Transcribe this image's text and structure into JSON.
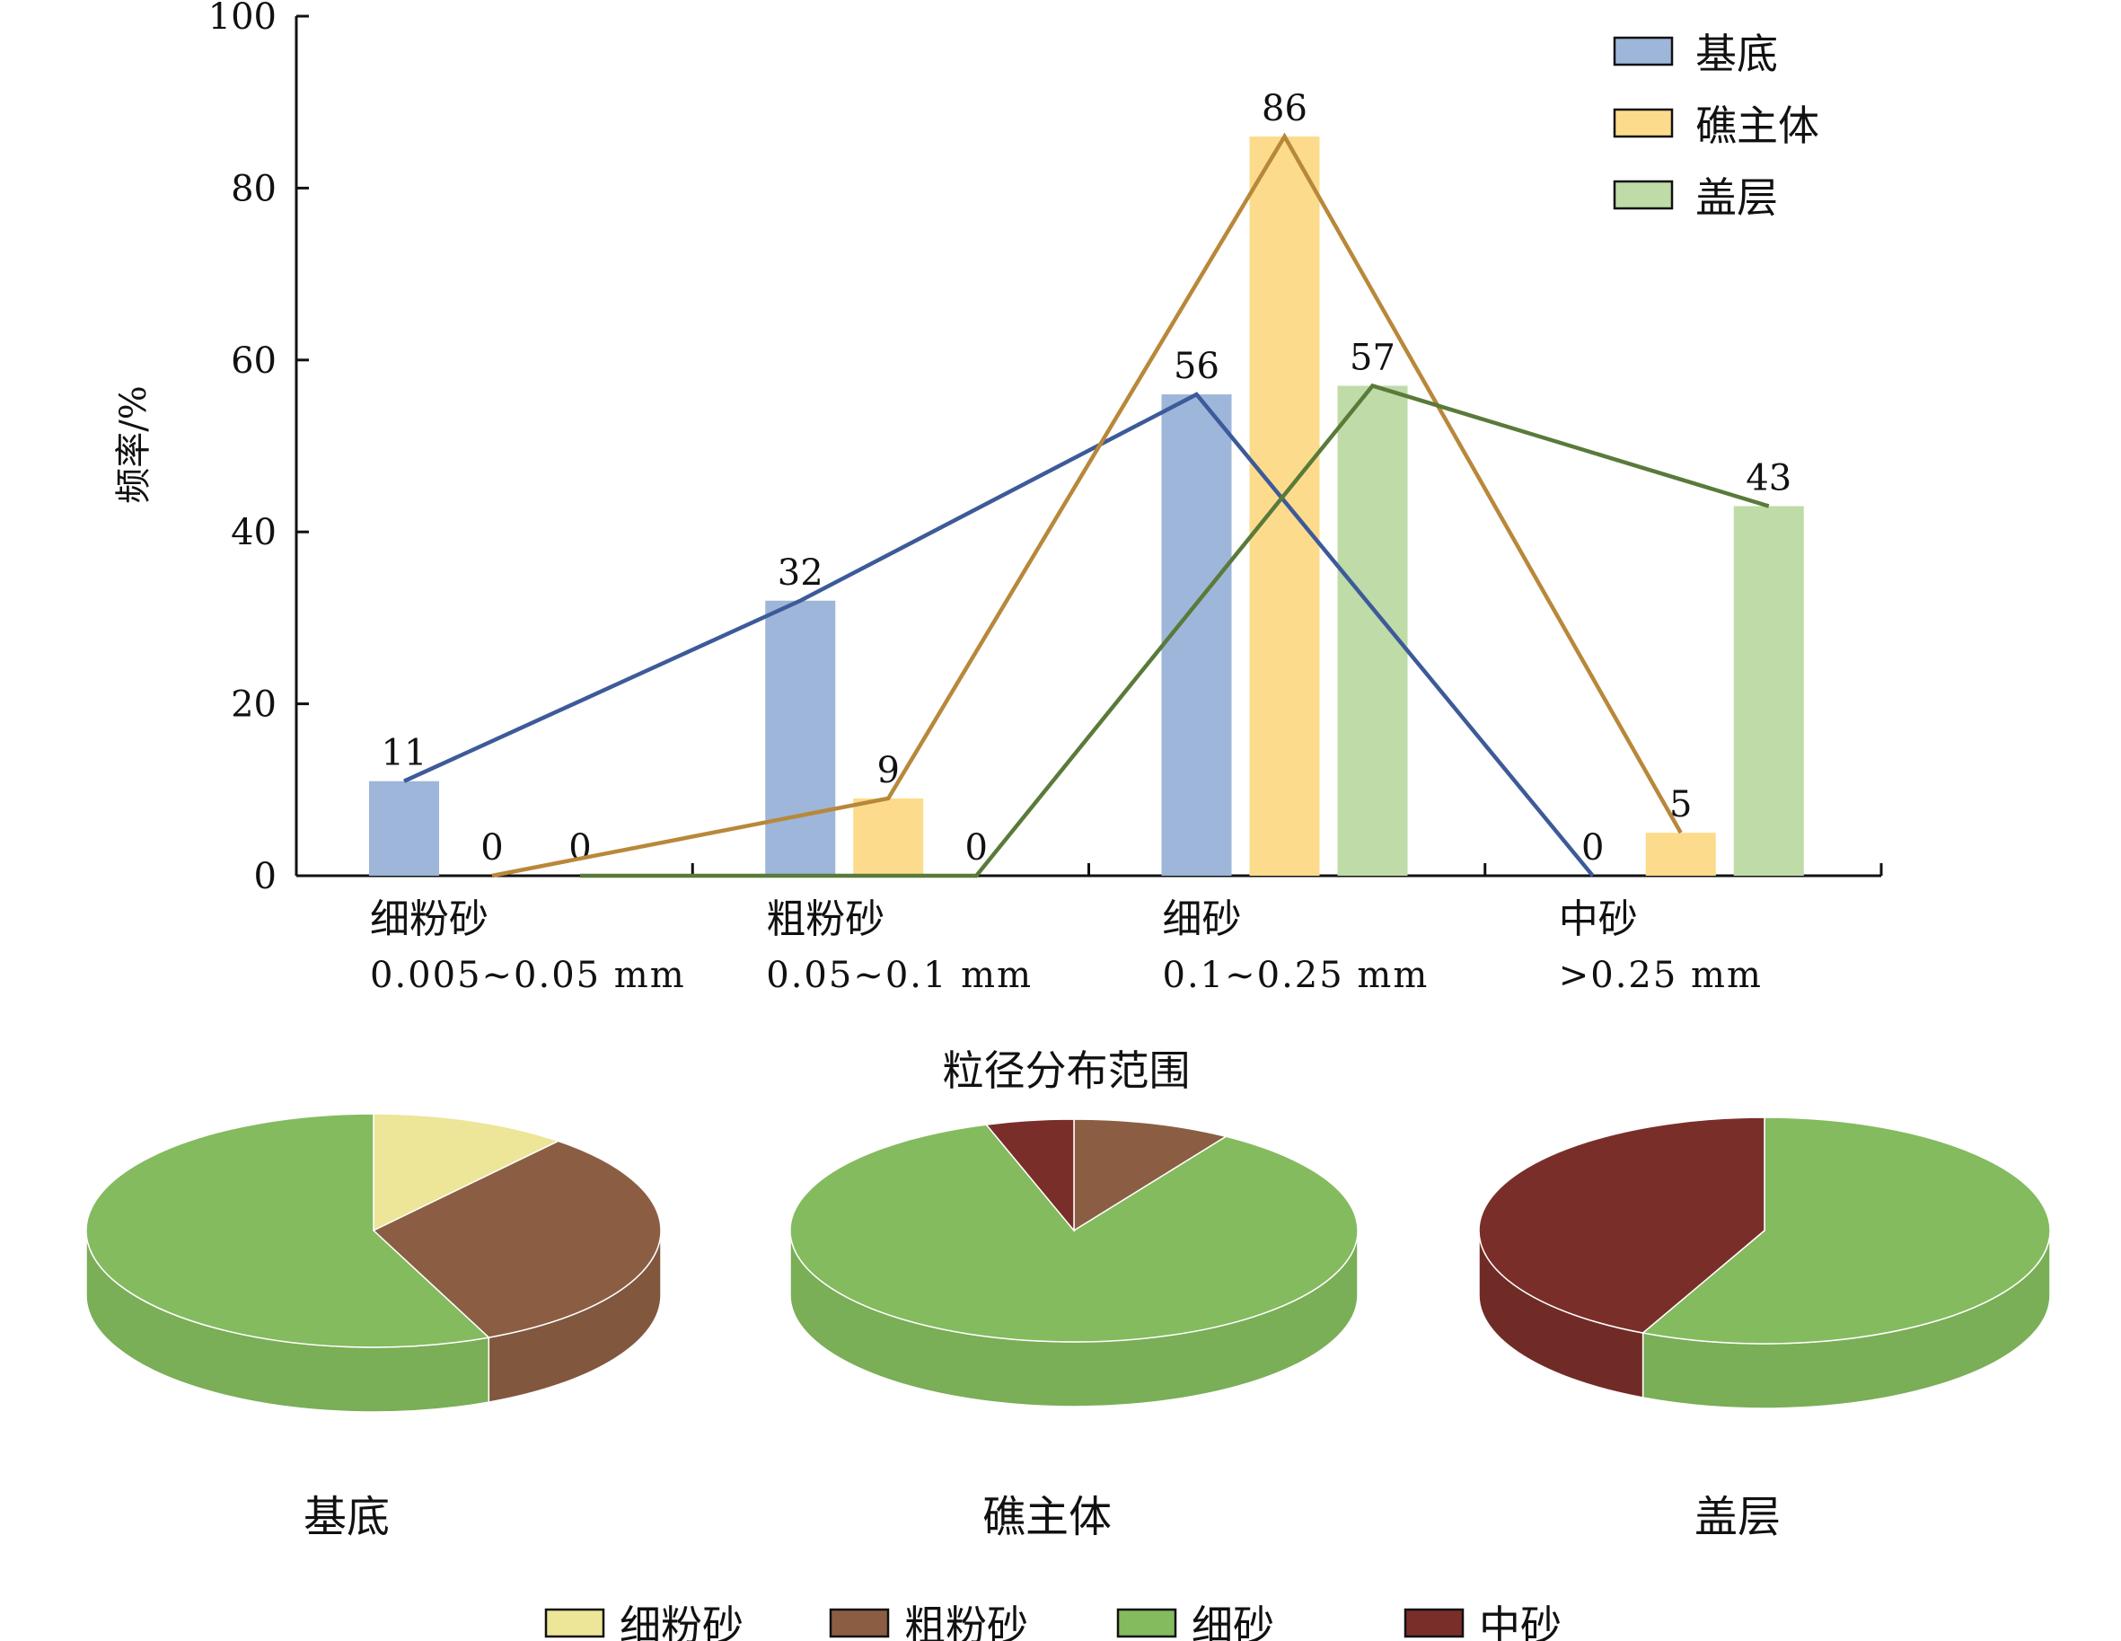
{
  "chart_data": [
    {
      "type": "bar",
      "title": "",
      "xlabel": "粒径分布范围",
      "ylabel": "频率/%",
      "ylim": [
        0,
        100
      ],
      "yticks": [
        0,
        20,
        40,
        60,
        80,
        100
      ],
      "grid": false,
      "legend_position": "top-right",
      "categories": [
        {
          "name": "细粉砂",
          "range": "0.005~0.05 mm"
        },
        {
          "name": "粗粉砂",
          "range": "0.05~0.1 mm"
        },
        {
          "name": "细砂",
          "range": "0.1~0.25 mm"
        },
        {
          "name": "中砂",
          "range": ">0.25 mm"
        }
      ],
      "series": [
        {
          "name": "基底",
          "values": [
            11,
            32,
            56,
            0
          ],
          "bar_color": "#9db6d9",
          "line_color": "#3d5a99"
        },
        {
          "name": "礁主体",
          "values": [
            0,
            9,
            86,
            5
          ],
          "bar_color": "#fcdc8c",
          "line_color": "#b8883a"
        },
        {
          "name": "盖层",
          "values": [
            0,
            0,
            57,
            43
          ],
          "bar_color": "#bedba8",
          "line_color": "#5a7a3a"
        }
      ],
      "overlay": "line connecting bar tops of each series"
    },
    {
      "type": "pie",
      "style": "3d",
      "categories": [
        "细粉砂",
        "粗粉砂",
        "细砂",
        "中砂"
      ],
      "colors": [
        "#ede598",
        "#8b5e43",
        "#83bb5e",
        "#7a2e2a"
      ],
      "pies": [
        {
          "label": "基底",
          "values": [
            11,
            32,
            56,
            0
          ]
        },
        {
          "label": "礁主体",
          "values": [
            0,
            9,
            86,
            5
          ]
        },
        {
          "label": "盖层",
          "values": [
            0,
            0,
            57,
            43
          ]
        }
      ],
      "legend_position": "bottom"
    }
  ]
}
